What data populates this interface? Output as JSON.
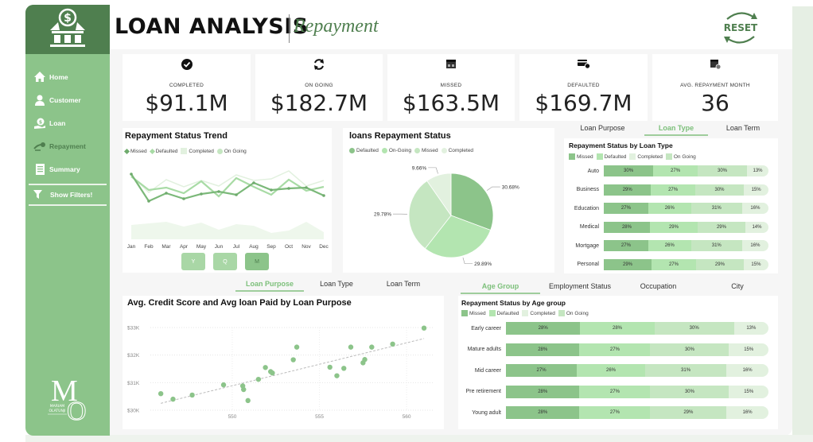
{
  "header": {
    "title": "LOAN ANALYSIS",
    "subtitle": "Repayment",
    "reset_label": "RESET"
  },
  "sidebar": {
    "items": [
      {
        "label": "Home",
        "icon": "home-icon"
      },
      {
        "label": "Customer",
        "icon": "user-icon"
      },
      {
        "label": "Loan",
        "icon": "loan-hand-icon"
      },
      {
        "label": "Repayment",
        "icon": "money-hand-icon",
        "active": true
      },
      {
        "label": "Summary",
        "icon": "document-icon"
      }
    ],
    "filter_label": "Show Filters!",
    "brand_name_line1": "MARIAM",
    "brand_name_line2": "OLATUNJI",
    "brand_initials": [
      "M",
      "O"
    ]
  },
  "kpis": [
    {
      "label": "COMPLETED",
      "value": "$91.1M",
      "icon": "check-circle-icon"
    },
    {
      "label": "ON GOING",
      "value": "$182.7M",
      "icon": "refresh-icon"
    },
    {
      "label": "MISSED",
      "value": "$163.5M",
      "icon": "calendar-missed-icon"
    },
    {
      "label": "DEFAULTED",
      "value": "$169.7M",
      "icon": "card-default-icon"
    },
    {
      "label": "AVG. REPAYMENT MONTH",
      "value": "36",
      "icon": "calendar-clock-icon"
    }
  ],
  "colors": {
    "missed": "#8cc48a",
    "defaulted": "#b3e5b0",
    "completed": "#e2f1df",
    "ongoing": "#c5e6c1",
    "accent": "#4f7f4f"
  },
  "granularity_buttons": [
    {
      "label": "Y"
    },
    {
      "label": "Q"
    },
    {
      "label": "M",
      "active": true
    }
  ],
  "chart_data": [
    {
      "type": "line",
      "title": "Repayment Status Trend",
      "legend": [
        "Missed",
        "Defaulted",
        "Completed",
        "On Going"
      ],
      "x": [
        "Jan",
        "Feb",
        "Mar",
        "Apr",
        "May",
        "Jun",
        "Jul",
        "Aug",
        "Sep",
        "Oct",
        "Nov",
        "Dec"
      ],
      "series": [
        {
          "name": "Missed",
          "values": [
            82,
            48,
            58,
            51,
            57,
            60,
            56,
            71,
            62,
            64,
            65,
            55
          ]
        },
        {
          "name": "Defaulted",
          "values": [
            79,
            62,
            65,
            58,
            73,
            54,
            77,
            66,
            56,
            75,
            61,
            66
          ]
        },
        {
          "name": "Completed",
          "values": [
            80,
            59,
            75,
            66,
            74,
            67,
            81,
            74,
            76,
            86,
            67,
            74
          ]
        },
        {
          "name": "On Going",
          "values": [
            18,
            20,
            22,
            16,
            21,
            12,
            19,
            17,
            8,
            11,
            22,
            9
          ]
        }
      ],
      "ylim": [
        0,
        100
      ]
    },
    {
      "type": "pie",
      "title": "loans Repayment Status",
      "legend": [
        "Defaulted",
        "On-Going",
        "Missed",
        "Completed"
      ],
      "slices": [
        {
          "name": "Defaulted",
          "value": 30.68,
          "label": "30.68%"
        },
        {
          "name": "On-Going",
          "value": 29.89,
          "label": "29.89%"
        },
        {
          "name": "Missed",
          "value": 29.78,
          "label": "29.78%"
        },
        {
          "name": "Completed",
          "value": 9.66,
          "label": "9.66%"
        }
      ]
    },
    {
      "type": "bar",
      "title": "Repayment Status by Loan Type",
      "legend": [
        "Missed",
        "Defaulted",
        "Completed",
        "On Going"
      ],
      "categories": [
        "Auto",
        "Business",
        "Education",
        "Medical",
        "Mortgage",
        "Personal"
      ],
      "series": [
        {
          "name": "Missed",
          "values": [
            30,
            29,
            27,
            28,
            27,
            29
          ]
        },
        {
          "name": "Defaulted",
          "values": [
            27,
            27,
            26,
            29,
            26,
            27
          ]
        },
        {
          "name": "Completed",
          "values": [
            30,
            30,
            31,
            29,
            31,
            29
          ]
        },
        {
          "name": "On Going",
          "values": [
            13,
            15,
            16,
            14,
            16,
            15
          ]
        }
      ]
    },
    {
      "type": "scatter",
      "title": "Avg. Credit Score and Avg loan Paid by Loan Purpose",
      "xticks": [
        "550",
        "555",
        "560"
      ],
      "yticks": [
        "$30K",
        "$31K",
        "$32K",
        "$33K"
      ],
      "xlim": [
        545.3,
        561.5
      ],
      "ylim": [
        30000,
        33000
      ],
      "points": [
        [
          545.9,
          30600
        ],
        [
          546.6,
          30400
        ],
        [
          547.7,
          30550
        ],
        [
          549.5,
          30920
        ],
        [
          550.6,
          30880
        ],
        [
          550.65,
          30750
        ],
        [
          550.9,
          30350
        ],
        [
          551.5,
          31120
        ],
        [
          551.9,
          31550
        ],
        [
          552.2,
          31400
        ],
        [
          552.3,
          31350
        ],
        [
          553.5,
          31830
        ],
        [
          553.7,
          32290
        ],
        [
          556.0,
          31250
        ],
        [
          555.6,
          31560
        ],
        [
          556.4,
          31520
        ],
        [
          556.8,
          32290
        ],
        [
          557.5,
          31720
        ],
        [
          557.6,
          31840
        ],
        [
          558.0,
          32290
        ],
        [
          559.2,
          32400
        ],
        [
          561.0,
          32980
        ]
      ],
      "trendline": [
        [
          545.9,
          30250
        ],
        [
          561.0,
          32600
        ]
      ]
    },
    {
      "type": "bar",
      "title": "Repayment Status by Age group",
      "legend": [
        "Missed",
        "Defaulted",
        "Completed",
        "On Going"
      ],
      "categories": [
        "Early career",
        "Mature adults",
        "Mid career",
        "Pre retirement",
        "Young adult"
      ],
      "series": [
        {
          "name": "Missed",
          "values": [
            28,
            28,
            27,
            28,
            28
          ]
        },
        {
          "name": "Defaulted",
          "values": [
            28,
            27,
            26,
            27,
            27
          ]
        },
        {
          "name": "Completed",
          "values": [
            30,
            30,
            31,
            30,
            29
          ]
        },
        {
          "name": "On Going",
          "values": [
            13,
            15,
            16,
            15,
            16
          ]
        }
      ]
    }
  ],
  "tabs_top_right": [
    {
      "label": "Loan Purpose"
    },
    {
      "label": "Loan Type",
      "active": true
    },
    {
      "label": "Loan Term"
    }
  ],
  "tabs_scatter": [
    {
      "label": "Loan Purpose",
      "active": true
    },
    {
      "label": "Loan Type"
    },
    {
      "label": "Loan Term"
    }
  ],
  "tabs_age": [
    {
      "label": "Age Group",
      "active": true
    },
    {
      "label": "Employment Status"
    },
    {
      "label": "Occupation"
    },
    {
      "label": "City"
    }
  ]
}
